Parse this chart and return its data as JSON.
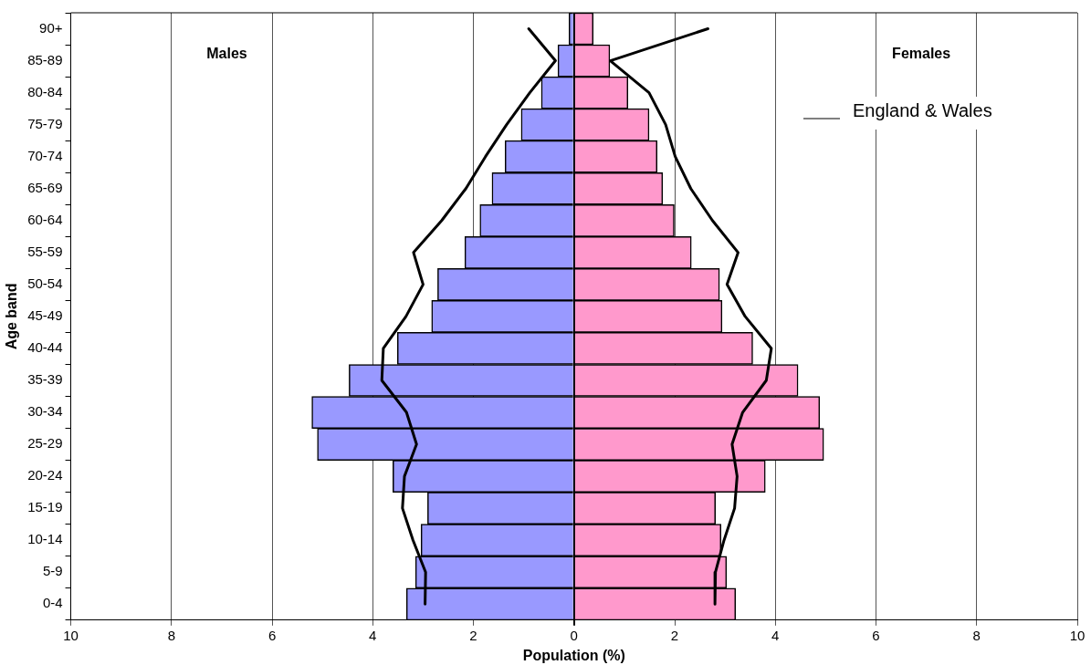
{
  "chart_data": {
    "type": "bar",
    "orientation": "horizontal",
    "stacked": true,
    "xlabel": "Population (%)",
    "ylabel": "Age band",
    "grid": "x",
    "legend": "top right",
    "annotations": [
      "Males",
      "Females"
    ],
    "categories": [
      "90+",
      "85-89",
      "80-84",
      "75-79",
      "70-74",
      "65-69",
      "60-64",
      "55-59",
      "50-54",
      "45-49",
      "40-44",
      "35-39",
      "30-34",
      "25-29",
      "20-24",
      "15-19",
      "10-14",
      "5-9",
      "0-4"
    ],
    "xlim": [
      -10,
      10
    ],
    "xticks": [
      {
        "value": -10,
        "label": "10"
      },
      {
        "value": -8,
        "label": "8"
      },
      {
        "value": -6,
        "label": "6"
      },
      {
        "value": -4,
        "label": "4"
      },
      {
        "value": -2,
        "label": "2"
      },
      0,
      2,
      4,
      6,
      8,
      10
    ],
    "series": [
      {
        "color": "#9999ff",
        "values": [
          -0.1,
          -0.32,
          -0.65,
          -1.05,
          -1.37,
          -1.63,
          -1.87,
          -2.17,
          -2.71,
          -2.83,
          -3.51,
          -4.47,
          -5.21,
          -5.1,
          -3.6,
          -2.91,
          -3.04,
          -3.15,
          -3.33
        ]
      },
      {
        "color": "#ff99cc",
        "values": [
          0.38,
          0.71,
          1.07,
          1.49,
          1.65,
          1.76,
          1.99,
          2.33,
          2.89,
          2.94,
          3.55,
          4.45,
          4.88,
          4.96,
          3.8,
          2.81,
          2.92,
          3.03,
          3.21
        ]
      },
      {
        "type": "line",
        "name": "England & Wales",
        "color": "#000000",
        "values": [
          -0.9,
          -0.37,
          -0.88,
          -1.34,
          -1.76,
          -2.15,
          -2.63,
          -3.19,
          -3.0,
          -3.34,
          -3.79,
          -3.82,
          -3.33,
          -3.13,
          -3.37,
          -3.41,
          -3.2,
          -2.95,
          -2.96
        ]
      },
      {
        "type": "line",
        "color": "#000000",
        "values": [
          2.66,
          0.72,
          1.49,
          1.82,
          2.01,
          2.32,
          2.75,
          3.26,
          3.04,
          3.4,
          3.92,
          3.82,
          3.35,
          3.14,
          3.24,
          3.19,
          2.98,
          2.81,
          2.8
        ]
      }
    ]
  }
}
